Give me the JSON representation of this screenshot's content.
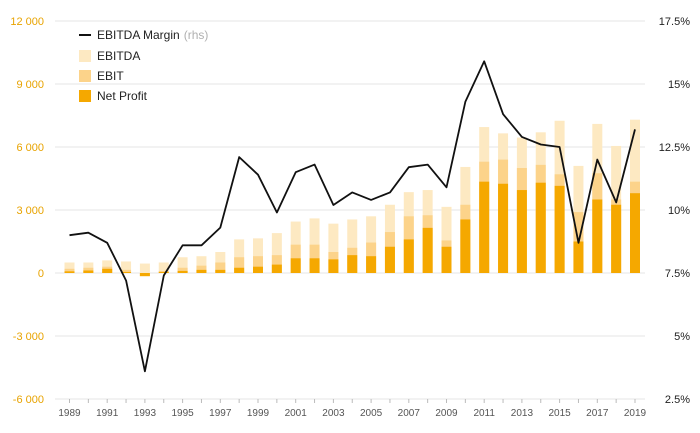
{
  "chart_data": {
    "type": "bar",
    "years": [
      1989,
      1990,
      1991,
      1992,
      1993,
      1994,
      1995,
      1996,
      1997,
      1998,
      1999,
      2000,
      2001,
      2002,
      2003,
      2004,
      2005,
      2006,
      2007,
      2008,
      2009,
      2010,
      2011,
      2012,
      2013,
      2014,
      2015,
      2016,
      2017,
      2018,
      2019
    ],
    "x_tick_labels": [
      "1989",
      "1991",
      "1993",
      "1995",
      "1997",
      "1999",
      "2001",
      "2003",
      "2005",
      "2007",
      "2009",
      "2011",
      "2013",
      "2015",
      "2017",
      "2019"
    ],
    "y_left_ticks": [
      12000,
      9000,
      6000,
      3000,
      0,
      -3000,
      -6000
    ],
    "y_left_tick_labels": [
      "12 000",
      "9 000",
      "6 000",
      "3 000",
      "0",
      "-3 000",
      "-6 000"
    ],
    "y_left_lim": [
      -6000,
      12000
    ],
    "y_right_ticks": [
      17.5,
      15,
      12.5,
      10,
      7.5,
      5,
      2.5
    ],
    "y_right_tick_labels": [
      "17.5%",
      "15%",
      "12.5%",
      "10%",
      "7.5%",
      "5%",
      "2.5%"
    ],
    "y_right_lim": [
      2.5,
      17.5
    ],
    "grid": true,
    "legend_position": "top-left",
    "series": [
      {
        "name": "EBITDA",
        "kind": "bar",
        "color": "#fde9c2",
        "values": [
          500,
          500,
          600,
          550,
          450,
          500,
          750,
          800,
          1000,
          1600,
          1650,
          1900,
          2450,
          2600,
          2350,
          2550,
          2700,
          3250,
          3850,
          3950,
          3150,
          5050,
          6950,
          6650,
          6450,
          6700,
          7250,
          5100,
          7100,
          6050,
          7300
        ]
      },
      {
        "name": "EBIT",
        "kind": "bar",
        "color": "#fcd38a",
        "values": [
          200,
          250,
          300,
          150,
          -150,
          100,
          250,
          350,
          500,
          750,
          800,
          850,
          1350,
          1350,
          1000,
          1200,
          1450,
          1950,
          2700,
          2750,
          1550,
          3250,
          5300,
          5400,
          5000,
          5150,
          4700,
          2900,
          4750,
          3500,
          4350
        ]
      },
      {
        "name": "Net Profit",
        "kind": "bar",
        "color": "#f5a800",
        "values": [
          80,
          120,
          200,
          50,
          -150,
          50,
          100,
          150,
          150,
          250,
          300,
          400,
          700,
          700,
          650,
          850,
          800,
          1250,
          1600,
          2150,
          1250,
          2550,
          4350,
          4250,
          3950,
          4300,
          4150,
          1500,
          3500,
          3250,
          3800
        ]
      },
      {
        "name": "EBITDA Margin",
        "name_note": "(rhs)",
        "kind": "line",
        "axis": "right",
        "color": "#111111",
        "values": [
          9.0,
          9.1,
          8.7,
          7.2,
          3.6,
          7.4,
          8.6,
          8.6,
          9.3,
          12.1,
          11.4,
          9.9,
          11.5,
          11.8,
          10.2,
          10.7,
          10.4,
          10.7,
          11.7,
          11.8,
          10.9,
          14.3,
          15.9,
          13.8,
          12.9,
          12.6,
          12.5,
          8.7,
          12.0,
          10.3,
          13.2
        ]
      }
    ]
  }
}
